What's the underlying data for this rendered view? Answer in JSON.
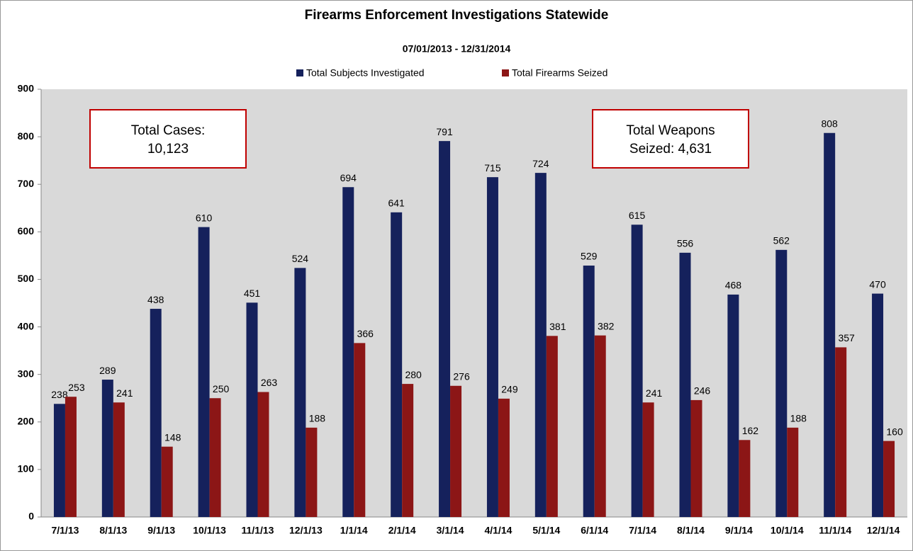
{
  "chart_data": {
    "type": "bar",
    "title": "Firearms Enforcement Investigations Statewide",
    "subtitle": "07/01/2013 - 12/31/2014",
    "categories": [
      "7/1/13",
      "8/1/13",
      "9/1/13",
      "10/1/13",
      "11/1/13",
      "12/1/13",
      "1/1/14",
      "2/1/14",
      "3/1/14",
      "4/1/14",
      "5/1/14",
      "6/1/14",
      "7/1/14",
      "8/1/14",
      "9/1/14",
      "10/1/14",
      "11/1/14",
      "12/1/14"
    ],
    "series": [
      {
        "name": "Total Subjects Investigated",
        "color": "#15215c",
        "values": [
          238,
          289,
          438,
          610,
          451,
          524,
          694,
          641,
          791,
          715,
          724,
          529,
          615,
          556,
          468,
          562,
          808,
          470
        ]
      },
      {
        "name": "Total Firearms Seized",
        "color": "#8c1616",
        "values": [
          253,
          241,
          148,
          250,
          263,
          188,
          366,
          280,
          276,
          249,
          381,
          382,
          241,
          246,
          162,
          188,
          357,
          160
        ]
      }
    ],
    "annotations": [
      {
        "lines": [
          "Total Cases:",
          "10,123"
        ]
      },
      {
        "lines": [
          "Total Weapons",
          "Seized: 4,631"
        ]
      }
    ],
    "ylim": [
      0,
      900
    ],
    "yticks": [
      0,
      100,
      200,
      300,
      400,
      500,
      600,
      700,
      800,
      900
    ],
    "legend": "top",
    "grid": false
  }
}
